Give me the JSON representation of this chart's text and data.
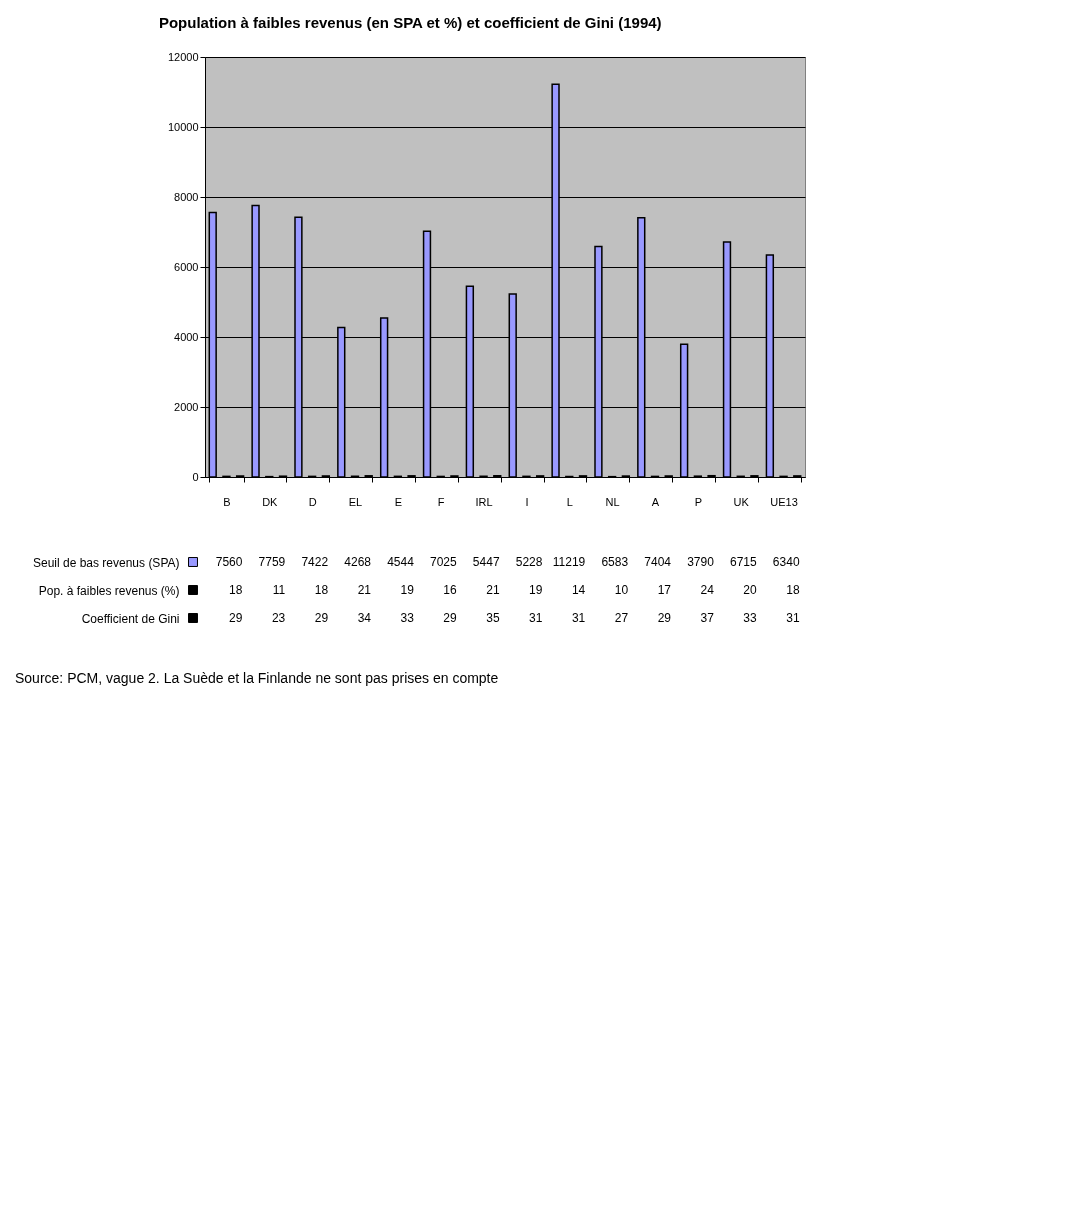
{
  "chart_data": {
    "type": "bar",
    "title": "Population à faibles revenus (en SPA et %) et coefficient de Gini (1994)",
    "categories": [
      "B",
      "DK",
      "D",
      "EL",
      "E",
      "F",
      "IRL",
      "I",
      "L",
      "NL",
      "A",
      "P",
      "UK",
      "UE13"
    ],
    "series": [
      {
        "name": "Seuil de bas revenus (SPA)",
        "color": "#9999ff",
        "values": [
          7560,
          7759,
          7422,
          4268,
          4544,
          7025,
          5447,
          5228,
          11219,
          6583,
          7404,
          3790,
          6715,
          6340
        ]
      },
      {
        "name": "Pop. à faibles revenus (%)",
        "color": "#000000",
        "values": [
          18,
          11,
          18,
          21,
          19,
          16,
          21,
          19,
          14,
          10,
          17,
          24,
          20,
          18
        ]
      },
      {
        "name": "Coefficient de Gini",
        "color": "#000000",
        "values": [
          29,
          23,
          29,
          34,
          33,
          29,
          35,
          31,
          31,
          27,
          29,
          37,
          33,
          31
        ]
      }
    ],
    "ylim": [
      0,
      12000
    ],
    "yticks": [
      0,
      2000,
      4000,
      6000,
      8000,
      10000,
      12000
    ],
    "grid": "y",
    "legend": "bottom left",
    "data_labels": true,
    "annotations": [
      "Source: PCM, vague 2. La Suède et la Finlande ne sont pas prises en compte"
    ]
  }
}
